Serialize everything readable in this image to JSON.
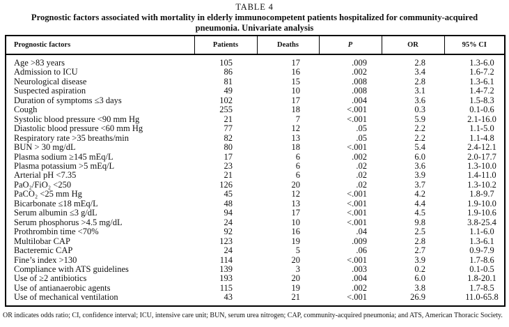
{
  "title": "TABLE 4",
  "caption": "Prognostic factors associated with mortality in elderly immunocompetent patients hospitalized for community-acquired pneumonia. Univariate analysis",
  "colors": {
    "ink": "#111111",
    "border": "#000000",
    "background": "#ffffff"
  },
  "table": {
    "columns": [
      "Prognostic factors",
      "Patients",
      "Deaths",
      "P",
      "OR",
      "95% CI"
    ],
    "rows": [
      {
        "factor": "Age >83 years",
        "patients": "105",
        "deaths": "17",
        "p": ".009",
        "or": "2.8",
        "ci": "1.3-6.0"
      },
      {
        "factor": "Admission to ICU",
        "patients": "86",
        "deaths": "16",
        "p": ".002",
        "or": "3.4",
        "ci": "1.6-7.2"
      },
      {
        "factor": "Neurological disease",
        "patients": "81",
        "deaths": "15",
        "p": ".008",
        "or": "2.8",
        "ci": "1.3-6.1"
      },
      {
        "factor": "Suspected aspiration",
        "patients": "49",
        "deaths": "10",
        "p": ".008",
        "or": "3.1",
        "ci": "1.4-7.2"
      },
      {
        "factor": "Duration of symptoms ≤3 days",
        "patients": "102",
        "deaths": "17",
        "p": ".004",
        "or": "3.6",
        "ci": "1.5-8.3"
      },
      {
        "factor": "Cough",
        "patients": "255",
        "deaths": "18",
        "p": "<.001",
        "or": "0.3",
        "ci": "0.1-0.6"
      },
      {
        "factor": "Systolic blood pressure <90 mm Hg",
        "patients": "21",
        "deaths": "7",
        "p": "<.001",
        "or": "5.9",
        "ci": "2.1-16.0"
      },
      {
        "factor": "Diastolic blood pressure <60 mm Hg",
        "patients": "77",
        "deaths": "12",
        "p": ".05",
        "or": "2.2",
        "ci": "1.1-5.0"
      },
      {
        "factor": "Respiratory rate >35 breaths/min",
        "patients": "82",
        "deaths": "13",
        "p": ".05",
        "or": "2.2",
        "ci": "1.1-4.8"
      },
      {
        "factor": "BUN > 30 mg/dL",
        "patients": "80",
        "deaths": "18",
        "p": "<.001",
        "or": "5.4",
        "ci": "2.4-12.1"
      },
      {
        "factor": "Plasma sodium ≥145 mEq/L",
        "patients": "17",
        "deaths": "6",
        "p": ".002",
        "or": "6.0",
        "ci": "2.0-17.7"
      },
      {
        "factor": "Plasma potassium >5 mEq/L",
        "patients": "23",
        "deaths": "6",
        "p": ".02",
        "or": "3.6",
        "ci": "1.3-10.0"
      },
      {
        "factor": "Arterial pH <7.35",
        "patients": "21",
        "deaths": "6",
        "p": ".02",
        "or": "3.9",
        "ci": "1.4-11.0"
      },
      {
        "factor": "PaO₂/FiO₂ <250",
        "patients": "126",
        "deaths": "20",
        "p": ".02",
        "or": "3.7",
        "ci": "1.3-10.2"
      },
      {
        "factor": "PaCO₂ <25 mm Hg",
        "patients": "45",
        "deaths": "12",
        "p": "<.001",
        "or": "4.2",
        "ci": "1.8-9.7"
      },
      {
        "factor": "Bicarbonate ≤18 mEq/L",
        "patients": "48",
        "deaths": "13",
        "p": "<.001",
        "or": "4.4",
        "ci": "1.9-10.0"
      },
      {
        "factor": "Serum albumin ≤3 g/dL",
        "patients": "94",
        "deaths": "17",
        "p": "<.001",
        "or": "4.5",
        "ci": "1.9-10.6"
      },
      {
        "factor": "Serum phosphorus >4.5 mg/dL",
        "patients": "24",
        "deaths": "10",
        "p": "<.001",
        "or": "9.8",
        "ci": "3.8-25.4"
      },
      {
        "factor": "Prothrombin time <70%",
        "patients": "92",
        "deaths": "16",
        "p": ".04",
        "or": "2.5",
        "ci": "1.1-6.0"
      },
      {
        "factor": "Multilobar CAP",
        "patients": "123",
        "deaths": "19",
        "p": ".009",
        "or": "2.8",
        "ci": "1.3-6.1"
      },
      {
        "factor": "Bacteremic CAP",
        "patients": "24",
        "deaths": "5",
        "p": ".06",
        "or": "2.7",
        "ci": "0.9-7.9"
      },
      {
        "factor": "Fine’s index >130",
        "patients": "114",
        "deaths": "20",
        "p": "<.001",
        "or": "3.9",
        "ci": "1.7-8.6"
      },
      {
        "factor": "Compliance with ATS guidelines",
        "patients": "139",
        "deaths": "3",
        "p": ".003",
        "or": "0.2",
        "ci": "0.1-0.5"
      },
      {
        "factor": "Use of ≥2 antibiotics",
        "patients": "193",
        "deaths": "20",
        "p": ".004",
        "or": "6.0",
        "ci": "1.8-20.1"
      },
      {
        "factor": "Use of antianaerobic agents",
        "patients": "115",
        "deaths": "19",
        "p": ".002",
        "or": "3.8",
        "ci": "1.7-8.5"
      },
      {
        "factor": "Use of mechanical ventilation",
        "patients": "43",
        "deaths": "21",
        "p": "<.001",
        "or": "26.9",
        "ci": "11.0-65.8"
      }
    ]
  },
  "footnote": "OR indicates odds ratio; CI, confidence interval; ICU, intensive care unit; BUN, serum urea nitrogen; CAP, community-acquired pneumonia; and ATS, American Thoracic Society."
}
